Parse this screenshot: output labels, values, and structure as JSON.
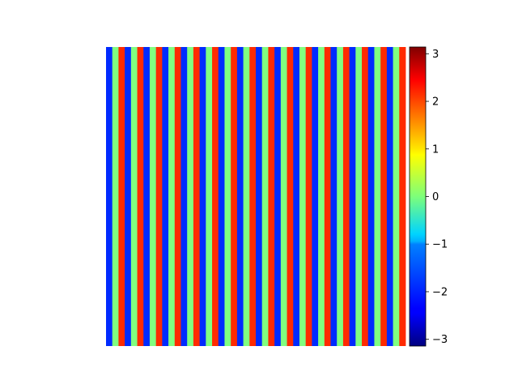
{
  "chart_data": {
    "type": "heatmap",
    "title": "",
    "xlabel": "",
    "ylabel": "",
    "axes_visible": false,
    "colormap": "jet",
    "value_range": [
      -3.14159,
      3.14159
    ],
    "pattern": "vertical stripes: phase cycles through the full range, constant along y",
    "columns": 48,
    "cycles_across_width": 16,
    "colorbar": {
      "position": "right",
      "ticks": [
        3,
        2,
        1,
        0,
        -1,
        -2,
        -3
      ],
      "tick_labels": [
        "3",
        "2",
        "1",
        "0",
        "−1",
        "−2",
        "−3"
      ]
    }
  }
}
